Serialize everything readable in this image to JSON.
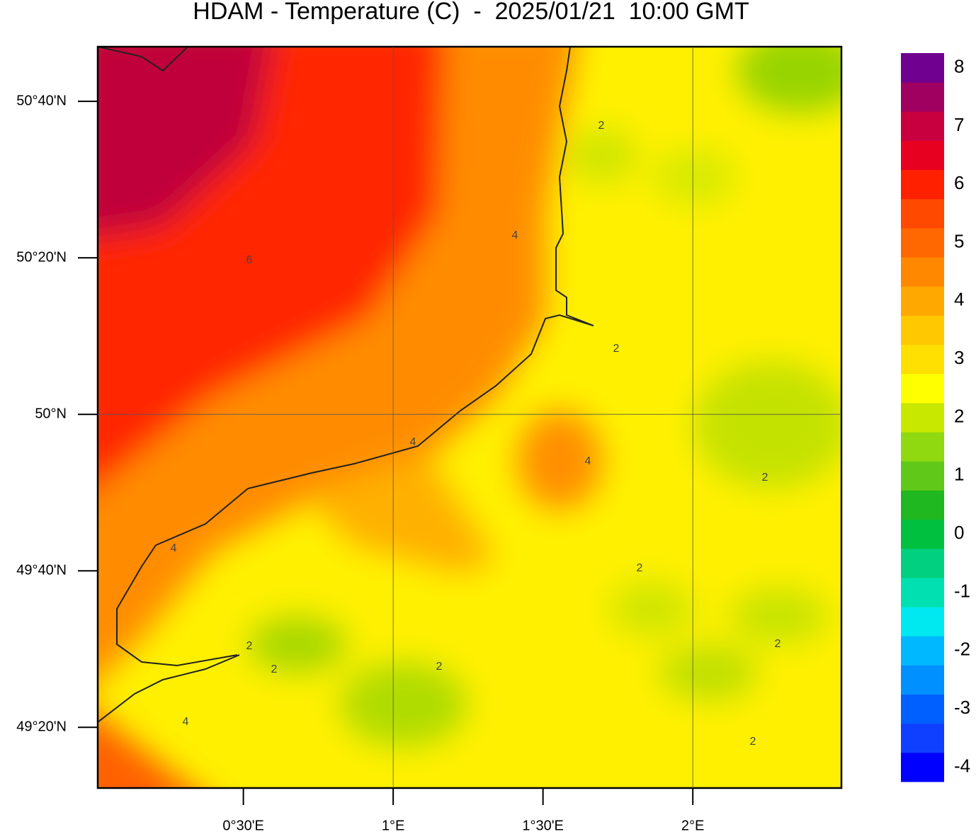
{
  "title": "HDAM - Temperature (C)  -  2025/01/21  10:00 GMT",
  "map": {
    "xlim": [
      0.014,
      2.496
    ],
    "ylim": [
      49.204,
      50.783
    ],
    "lat_ticks": [
      {
        "value": 50.6667,
        "label": "50°40'N"
      },
      {
        "value": 50.3333,
        "label": "50°20'N"
      },
      {
        "value": 50,
        "label": "50°N"
      },
      {
        "value": 49.6667,
        "label": "49°40'N"
      },
      {
        "value": 49.3333,
        "label": "49°20'N"
      }
    ],
    "lon_ticks": [
      {
        "value": 0.5,
        "label": "0°30'E"
      },
      {
        "value": 1,
        "label": "1°E"
      },
      {
        "value": 1.5,
        "label": "1°30'E"
      },
      {
        "value": 2,
        "label": "2°E"
      }
    ],
    "contour_labels": [
      2,
      4,
      6,
      2,
      4,
      4,
      2,
      4,
      2,
      2,
      2,
      2,
      2,
      4,
      2
    ]
  },
  "colorbar": {
    "lim": [
      -4.25,
      8.25
    ],
    "ticks": [
      8,
      7,
      6,
      5,
      4,
      3,
      2,
      1,
      0,
      -1,
      -2,
      -3,
      -4
    ],
    "colors": [
      "#0000ff",
      "#1040ff",
      "#0060ff",
      "#0090ff",
      "#00b8ff",
      "#00e8f0",
      "#00e0b0",
      "#00d080",
      "#00c040",
      "#20b820",
      "#60c818",
      "#90d810",
      "#c8e800",
      "#ffff00",
      "#ffe000",
      "#ffc800",
      "#ffa800",
      "#ff8800",
      "#ff6800",
      "#ff4800",
      "#ff2000",
      "#e80020",
      "#c80040",
      "#a00060",
      "#700090"
    ]
  }
}
